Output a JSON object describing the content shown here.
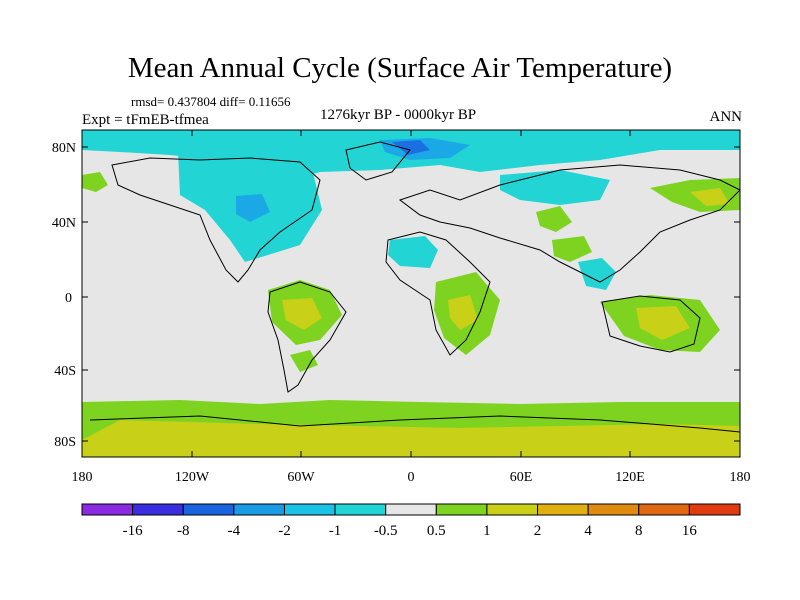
{
  "title": "Mean Annual Cycle (Surface Air Temperature)",
  "stats_line": "rmsd= 0.437804 diff= 0.11656",
  "experiment": "Expt = tFmEB-tfmea",
  "period": "1276kyr BP - 0000kyr BP",
  "season": "ANN",
  "lat_labels": [
    "80N",
    "40N",
    "0",
    "40S",
    "80S"
  ],
  "lon_labels": [
    "180",
    "120W",
    "60W",
    "0",
    "60E",
    "120E",
    "180"
  ],
  "colors": {
    "neutral": "#e6e6e6",
    "light_cyan": "#22d4d4",
    "cyan_blue": "#1eaee4",
    "blue": "#1a70e0",
    "green": "#7ed320",
    "yellow_green": "#c8d018",
    "coastline": "#000000"
  },
  "colorbar": {
    "colors": [
      "#8a2be2",
      "#3a2ee0",
      "#1a64e0",
      "#1a9be6",
      "#1ac2e6",
      "#22d4d4",
      "#e6e6e6",
      "#7ed320",
      "#c8d018",
      "#e0b010",
      "#e08a10",
      "#e06810",
      "#e03a10"
    ],
    "labels": [
      "-16",
      "-8",
      "-4",
      "-2",
      "-1",
      "-0.5",
      "0.5",
      "1",
      "2",
      "4",
      "8",
      "16"
    ]
  }
}
